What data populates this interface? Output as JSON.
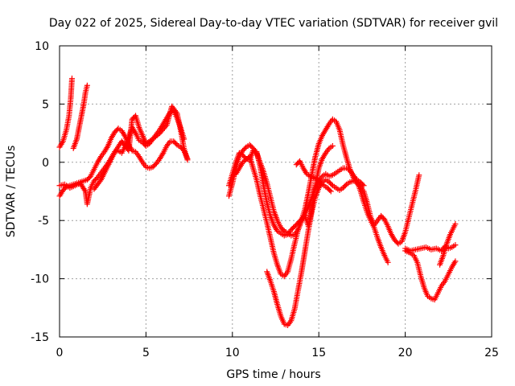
{
  "chart_data": {
    "type": "scatter",
    "title": "Day 022 of 2025, Sidereal Day-to-day VTEC variation (SDTVAR) for receiver gvil",
    "xlabel": "GPS time / hours",
    "ylabel": "SDTVAR / TECUs",
    "xlim": [
      0,
      25
    ],
    "ylim": [
      -15,
      10
    ],
    "xticks": [
      "0",
      "5",
      "10",
      "15",
      "20",
      "25"
    ],
    "yticks": [
      "10",
      "5",
      "0",
      "-5",
      "-10",
      "-15"
    ],
    "grid": true,
    "marker": "+",
    "color": "#ff0000",
    "series": [
      {
        "points": [
          [
            0.0,
            1.3
          ],
          [
            0.2,
            1.8
          ],
          [
            0.4,
            2.8
          ],
          [
            0.55,
            4.0
          ],
          [
            0.65,
            5.5
          ],
          [
            0.72,
            7.2
          ],
          [
            0.0,
            -2.9
          ],
          [
            0.2,
            -2.4
          ],
          [
            0.4,
            -2.1
          ],
          [
            0.6,
            -2.0
          ],
          [
            0.8,
            -1.9
          ],
          [
            1.0,
            -1.8
          ],
          [
            1.2,
            -1.7
          ],
          [
            1.4,
            -1.6
          ],
          [
            1.6,
            -1.5
          ],
          [
            1.8,
            -1.2
          ],
          [
            2.0,
            -0.6
          ],
          [
            2.2,
            0.0
          ],
          [
            2.4,
            0.5
          ],
          [
            2.6,
            0.9
          ],
          [
            2.8,
            1.4
          ],
          [
            3.0,
            2.1
          ],
          [
            3.2,
            2.6
          ],
          [
            3.4,
            2.9
          ],
          [
            3.6,
            2.7
          ],
          [
            3.8,
            2.2
          ],
          [
            4.0,
            1.5
          ],
          [
            4.2,
            1.0
          ],
          [
            4.4,
            0.9
          ],
          [
            4.6,
            0.5
          ],
          [
            4.8,
            0.0
          ],
          [
            5.0,
            -0.4
          ],
          [
            5.2,
            -0.5
          ],
          [
            5.4,
            -0.4
          ],
          [
            5.6,
            -0.1
          ],
          [
            5.8,
            0.3
          ],
          [
            6.0,
            0.8
          ],
          [
            6.2,
            1.4
          ],
          [
            6.4,
            1.8
          ],
          [
            6.6,
            1.8
          ],
          [
            6.8,
            1.5
          ],
          [
            7.0,
            1.3
          ],
          [
            7.2,
            1.0
          ],
          [
            7.4,
            0.3
          ]
        ]
      },
      {
        "points": [
          [
            0.8,
            1.2
          ],
          [
            1.0,
            2.0
          ],
          [
            1.2,
            3.5
          ],
          [
            1.4,
            5.0
          ],
          [
            1.5,
            6.0
          ],
          [
            1.6,
            6.6
          ],
          [
            0.0,
            -2.0
          ],
          [
            0.3,
            -1.9
          ],
          [
            0.6,
            -2.2
          ],
          [
            0.9,
            -2.0
          ],
          [
            1.2,
            -1.8
          ],
          [
            1.5,
            -2.5
          ],
          [
            1.6,
            -3.6
          ],
          [
            1.8,
            -2.2
          ],
          [
            2.0,
            -1.6
          ],
          [
            2.2,
            -1.3
          ],
          [
            2.4,
            -0.9
          ],
          [
            2.6,
            -0.5
          ],
          [
            2.8,
            -0.1
          ],
          [
            3.0,
            0.4
          ],
          [
            3.2,
            0.9
          ],
          [
            3.4,
            1.0
          ],
          [
            3.6,
            0.8
          ],
          [
            3.8,
            1.4
          ],
          [
            4.0,
            2.2
          ],
          [
            4.2,
            3.0
          ],
          [
            4.4,
            2.5
          ],
          [
            4.6,
            1.9
          ],
          [
            4.8,
            1.7
          ],
          [
            5.0,
            1.4
          ],
          [
            5.2,
            1.6
          ],
          [
            5.4,
            2.0
          ],
          [
            5.6,
            2.4
          ],
          [
            5.8,
            2.8
          ],
          [
            6.0,
            3.3
          ],
          [
            6.2,
            3.8
          ],
          [
            6.4,
            4.3
          ],
          [
            6.6,
            4.4
          ],
          [
            6.8,
            3.8
          ],
          [
            7.0,
            3.0
          ],
          [
            7.2,
            2.0
          ]
        ]
      },
      {
        "points": [
          [
            2.0,
            -2.3
          ],
          [
            2.4,
            -1.5
          ],
          [
            2.8,
            -0.3
          ],
          [
            3.2,
            0.9
          ],
          [
            3.6,
            1.8
          ],
          [
            4.0,
            1.0
          ],
          [
            4.2,
            3.7
          ],
          [
            4.4,
            4.0
          ],
          [
            4.6,
            3.0
          ],
          [
            5.0,
            1.6
          ],
          [
            5.4,
            2.0
          ],
          [
            5.8,
            2.5
          ],
          [
            6.2,
            3.2
          ],
          [
            6.5,
            4.8
          ],
          [
            6.8,
            4.2
          ],
          [
            7.0,
            2.8
          ],
          [
            7.2,
            1.2
          ],
          [
            7.4,
            0.2
          ]
        ]
      },
      {
        "points": [
          [
            9.8,
            -2.9
          ],
          [
            10.0,
            -1.8
          ],
          [
            10.2,
            -0.5
          ],
          [
            10.4,
            0.5
          ],
          [
            10.6,
            1.0
          ],
          [
            10.8,
            1.3
          ],
          [
            11.0,
            1.5
          ],
          [
            11.2,
            1.2
          ],
          [
            11.4,
            0.8
          ],
          [
            11.6,
            0.0
          ],
          [
            11.8,
            -0.8
          ],
          [
            12.0,
            -1.8
          ],
          [
            12.2,
            -3.0
          ],
          [
            12.4,
            -4.2
          ],
          [
            12.6,
            -5.0
          ],
          [
            12.8,
            -5.6
          ],
          [
            13.0,
            -5.9
          ],
          [
            13.2,
            -6.1
          ],
          [
            13.4,
            -6.3
          ],
          [
            13.6,
            -6.2
          ],
          [
            13.8,
            -5.8
          ],
          [
            14.0,
            -5.0
          ],
          [
            14.2,
            -4.0
          ],
          [
            14.4,
            -2.6
          ],
          [
            14.6,
            -1.0
          ],
          [
            14.8,
            0.5
          ],
          [
            15.0,
            1.6
          ],
          [
            15.2,
            2.3
          ],
          [
            15.4,
            2.8
          ],
          [
            15.6,
            3.3
          ],
          [
            15.8,
            3.7
          ],
          [
            16.0,
            3.5
          ],
          [
            16.2,
            2.8
          ],
          [
            16.4,
            1.5
          ],
          [
            16.6,
            0.4
          ],
          [
            16.8,
            -0.6
          ],
          [
            17.0,
            -1.3
          ],
          [
            17.2,
            -1.8
          ],
          [
            17.4,
            -2.1
          ],
          [
            17.6,
            -2.5
          ],
          [
            17.8,
            -3.5
          ],
          [
            18.0,
            -4.7
          ],
          [
            18.2,
            -5.4
          ],
          [
            18.4,
            -5.0
          ],
          [
            18.6,
            -4.6
          ],
          [
            18.8,
            -4.9
          ],
          [
            19.0,
            -5.5
          ],
          [
            19.2,
            -6.2
          ],
          [
            19.4,
            -6.7
          ],
          [
            19.6,
            -7.0
          ],
          [
            19.8,
            -6.8
          ],
          [
            20.0,
            -6.0
          ],
          [
            20.2,
            -4.8
          ],
          [
            20.4,
            -3.6
          ],
          [
            20.6,
            -2.4
          ],
          [
            20.8,
            -1.1
          ]
        ]
      },
      {
        "points": [
          [
            9.8,
            -2.0
          ],
          [
            10.0,
            -1.0
          ],
          [
            10.2,
            0.0
          ],
          [
            10.4,
            0.8
          ],
          [
            10.6,
            0.6
          ],
          [
            10.8,
            0.3
          ],
          [
            11.0,
            0.2
          ],
          [
            11.2,
            1.0
          ],
          [
            11.4,
            0.9
          ],
          [
            11.6,
            -0.3
          ],
          [
            11.8,
            -2.0
          ],
          [
            12.0,
            -3.5
          ],
          [
            12.2,
            -4.6
          ],
          [
            12.4,
            -5.4
          ],
          [
            12.6,
            -5.9
          ],
          [
            12.8,
            -6.1
          ],
          [
            13.0,
            -6.3
          ],
          [
            13.2,
            -6.2
          ],
          [
            13.4,
            -5.8
          ],
          [
            13.6,
            -5.5
          ],
          [
            13.8,
            -5.2
          ],
          [
            14.0,
            -4.9
          ],
          [
            14.2,
            -4.5
          ],
          [
            14.4,
            -3.8
          ],
          [
            14.6,
            -3.0
          ],
          [
            14.8,
            -2.2
          ],
          [
            15.0,
            -1.6
          ],
          [
            15.2,
            -1.2
          ],
          [
            15.4,
            -1.0
          ],
          [
            15.6,
            -1.2
          ],
          [
            15.8,
            -1.1
          ],
          [
            16.0,
            -0.9
          ],
          [
            16.2,
            -0.7
          ],
          [
            16.4,
            -0.5
          ],
          [
            16.6,
            -0.5
          ],
          [
            16.8,
            -0.7
          ],
          [
            17.0,
            -1.1
          ],
          [
            17.2,
            -1.6
          ],
          [
            17.4,
            -2.4
          ],
          [
            17.6,
            -3.4
          ],
          [
            17.8,
            -4.3
          ],
          [
            18.0,
            -5.0
          ],
          [
            18.2,
            -5.6
          ],
          [
            18.4,
            -6.5
          ],
          [
            18.6,
            -7.3
          ],
          [
            18.8,
            -8.0
          ],
          [
            19.0,
            -8.6
          ]
        ]
      },
      {
        "points": [
          [
            10.2,
            -1.0
          ],
          [
            10.6,
            0.0
          ],
          [
            11.0,
            0.5
          ],
          [
            11.2,
            -0.5
          ],
          [
            11.4,
            -1.5
          ],
          [
            11.6,
            -2.8
          ],
          [
            11.8,
            -4.0
          ],
          [
            12.0,
            -5.2
          ],
          [
            12.2,
            -6.5
          ],
          [
            12.4,
            -7.8
          ],
          [
            12.6,
            -8.8
          ],
          [
            12.8,
            -9.6
          ],
          [
            13.0,
            -9.8
          ],
          [
            13.2,
            -9.4
          ],
          [
            13.4,
            -8.3
          ],
          [
            13.6,
            -7.0
          ],
          [
            13.8,
            -5.8
          ],
          [
            14.0,
            -5.0
          ],
          [
            14.2,
            -4.6
          ],
          [
            14.4,
            -5.5
          ],
          [
            14.6,
            -4.0
          ],
          [
            14.8,
            -2.0
          ],
          [
            15.0,
            -0.5
          ],
          [
            15.2,
            0.3
          ],
          [
            15.4,
            0.8
          ],
          [
            15.6,
            1.2
          ],
          [
            15.8,
            1.4
          ]
        ]
      },
      {
        "points": [
          [
            12.0,
            -9.4
          ],
          [
            12.2,
            -10.2
          ],
          [
            12.4,
            -11.1
          ],
          [
            12.6,
            -12.2
          ],
          [
            12.8,
            -13.2
          ],
          [
            13.0,
            -13.9
          ],
          [
            13.2,
            -14.0
          ],
          [
            13.4,
            -13.6
          ],
          [
            13.6,
            -12.6
          ],
          [
            13.8,
            -11.0
          ],
          [
            14.0,
            -9.4
          ],
          [
            14.2,
            -7.6
          ],
          [
            14.4,
            -5.8
          ],
          [
            14.6,
            -4.2
          ],
          [
            14.8,
            -3.0
          ],
          [
            15.0,
            -2.2
          ],
          [
            15.2,
            -1.7
          ],
          [
            15.4,
            -1.5
          ],
          [
            15.6,
            -1.7
          ],
          [
            15.8,
            -2.0
          ],
          [
            16.0,
            -2.2
          ],
          [
            16.2,
            -2.4
          ],
          [
            16.4,
            -2.2
          ],
          [
            16.6,
            -1.9
          ],
          [
            16.8,
            -1.7
          ],
          [
            17.0,
            -1.6
          ],
          [
            17.2,
            -1.5
          ],
          [
            17.4,
            -1.7
          ],
          [
            17.6,
            -2.0
          ]
        ]
      },
      {
        "points": [
          [
            13.7,
            -0.2
          ],
          [
            13.9,
            0.1
          ],
          [
            14.1,
            -0.5
          ],
          [
            14.3,
            -1.0
          ],
          [
            14.5,
            -1.2
          ],
          [
            14.7,
            -1.3
          ],
          [
            14.9,
            -1.4
          ],
          [
            15.1,
            -1.8
          ],
          [
            15.3,
            -2.0
          ],
          [
            15.5,
            -2.2
          ],
          [
            15.7,
            -2.5
          ]
        ]
      },
      {
        "points": [
          [
            20.0,
            -7.6
          ],
          [
            20.3,
            -7.8
          ],
          [
            20.5,
            -8.0
          ],
          [
            20.7,
            -8.6
          ],
          [
            20.9,
            -9.8
          ],
          [
            21.1,
            -10.8
          ],
          [
            21.3,
            -11.5
          ],
          [
            21.5,
            -11.7
          ],
          [
            21.7,
            -11.8
          ],
          [
            21.9,
            -11.2
          ],
          [
            22.1,
            -10.6
          ],
          [
            22.3,
            -10.2
          ],
          [
            22.5,
            -9.6
          ],
          [
            22.7,
            -9.0
          ],
          [
            22.9,
            -8.5
          ]
        ]
      },
      {
        "points": [
          [
            20.0,
            -7.4
          ],
          [
            20.3,
            -7.6
          ],
          [
            20.6,
            -7.5
          ],
          [
            20.9,
            -7.4
          ],
          [
            21.2,
            -7.3
          ],
          [
            21.5,
            -7.5
          ],
          [
            21.8,
            -7.4
          ],
          [
            22.1,
            -7.6
          ],
          [
            22.3,
            -7.2
          ],
          [
            22.5,
            -7.4
          ],
          [
            22.7,
            -7.3
          ],
          [
            22.9,
            -7.1
          ]
        ]
      },
      {
        "points": [
          [
            22.0,
            -8.8
          ],
          [
            22.2,
            -8.0
          ],
          [
            22.4,
            -7.0
          ],
          [
            22.6,
            -6.2
          ],
          [
            22.8,
            -5.6
          ],
          [
            22.9,
            -5.3
          ]
        ]
      }
    ]
  }
}
